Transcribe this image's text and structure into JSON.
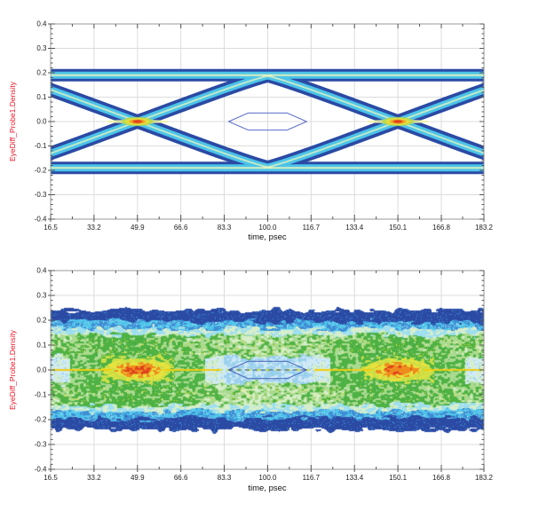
{
  "page": {
    "background": "#ffffff",
    "description": "Two stacked eye-diagram density plots"
  },
  "colors": {
    "navy": "#2b4aa4",
    "blue2": "#3e8ed6",
    "cyan": "#4cc4e9",
    "cyan2": "#74c8e8",
    "pale_cyan": "#9ddff0",
    "pale_blue": "#cfe9f7",
    "light_blue": "#9fd2ee",
    "pale_green": "#d6eecb",
    "light_green": "#a9da90",
    "green": "#4fb244",
    "dark_green": "#3da23c",
    "yellow": "#e6e23e",
    "yellow_line": "#f1cd12",
    "yellow_green": "#c8de46",
    "orange": "#ee8c1e",
    "red": "#e0431d",
    "pale_core": "#e8f4bc",
    "hot_streak": "#edf3a6",
    "mask_outline": "#5a6cc8",
    "mask_outline_bottom": "#4a62b8",
    "center_dash": "#3c55a6",
    "grid": "#dcdcdc",
    "frame": "#9a9a9a",
    "tick": "#555555",
    "tick_text": "#222222"
  },
  "chart_data": [
    {
      "type": "heatmap",
      "subtype": "eye-diagram-density",
      "title": "",
      "xlabel": "time, psec",
      "ylabel": "EyeDiff_Probe1.Density",
      "xlim": [
        16.5,
        183.2
      ],
      "ylim": [
        -0.4,
        0.4
      ],
      "x_ticks": [
        16.5,
        33.2,
        49.9,
        66.6,
        83.3,
        100.0,
        116.7,
        133.4,
        150.1,
        166.8,
        183.2
      ],
      "x_tick_labels": [
        "16.5",
        "33.2",
        "49.9",
        "66.6",
        "83.3",
        "100.0",
        "116.7",
        "133.4",
        "150.1",
        "166.8",
        "183.2"
      ],
      "y_ticks": [
        0.4,
        0.3,
        0.2,
        0.1,
        0.0,
        -0.1,
        -0.2,
        -0.3,
        -0.4
      ],
      "y_tick_labels": [
        "0.4",
        "0.3",
        "0.2",
        "0.1",
        "0.0",
        "-0.1",
        "-0.2",
        "-0.3",
        "-0.4"
      ],
      "grid": true,
      "legend": false,
      "eye": {
        "state": "open",
        "crossing_times_psec": [
          49.9,
          150.1
        ],
        "eye_center_psec": 100.0,
        "unit_interval_psec": 100.2,
        "high_level": 0.19,
        "low_level": -0.19,
        "transition_halfspan_psec": 52,
        "crossing_hotspot": "yellow-orange-red density peak at each zero crossing",
        "mask_polygon": [
          [
            85,
            0
          ],
          [
            92.5,
            0.035
          ],
          [
            107.5,
            0.035
          ],
          [
            115,
            0
          ],
          [
            107.5,
            -0.035
          ],
          [
            92.5,
            -0.035
          ]
        ]
      },
      "density_colormap_low_to_high": [
        "#2b4aa4",
        "#4cc4e9",
        "#a9da90",
        "#4fb244",
        "#e6e23e",
        "#ee8c1e",
        "#e0431d"
      ]
    },
    {
      "type": "heatmap",
      "subtype": "eye-diagram-density",
      "title": "",
      "xlabel": "time, psec",
      "ylabel": "EyeDiff_Probe1.Density",
      "xlim": [
        16.5,
        183.2
      ],
      "ylim": [
        -0.4,
        0.4
      ],
      "x_ticks": [
        16.5,
        33.2,
        49.9,
        66.6,
        83.3,
        100.0,
        116.7,
        133.4,
        150.1,
        166.8,
        183.2
      ],
      "x_tick_labels": [
        "16.5",
        "33.2",
        "49.9",
        "66.6",
        "83.3",
        "100.0",
        "116.7",
        "133.4",
        "150.1",
        "166.8",
        "183.2"
      ],
      "y_ticks": [
        0.4,
        0.3,
        0.2,
        0.1,
        0.0,
        -0.1,
        -0.2,
        -0.3,
        -0.4
      ],
      "y_tick_labels": [
        "0.4",
        "0.3",
        "0.2",
        "0.1",
        "0.0",
        "-0.1",
        "-0.2",
        "-0.3",
        "-0.4"
      ],
      "grid": true,
      "legend": false,
      "eye": {
        "state": "closed-noisy",
        "crossing_times_psec": [
          49.9,
          150.1
        ],
        "eye_center_psec": 100.0,
        "unit_interval_psec": 100.2,
        "mask_polygon": [
          [
            85,
            0
          ],
          [
            92.5,
            0.035
          ],
          [
            107.5,
            0.035
          ],
          [
            115,
            0
          ],
          [
            107.5,
            -0.035
          ],
          [
            92.5,
            -0.035
          ]
        ],
        "center_line": "thin yellow density trace at 0.0 across full width, dark dashed segment through mask"
      },
      "bands": [
        {
          "v_range": [
            0.195,
            0.245
          ],
          "color": "navy",
          "note": "wavy outer envelope"
        },
        {
          "v_range": [
            0.167,
            0.195
          ],
          "color": "cyan / medium blue"
        },
        {
          "v_range": [
            0.141,
            0.167
          ],
          "color": "pale cyan / pale green"
        },
        {
          "v_range": [
            0.052,
            0.141
          ],
          "color": "green blotches, strongest near crossings, sparse yellow speckles"
        },
        {
          "v_range": [
            0.0,
            0.052
          ],
          "color": "light blue near eye center, yellow-orange-red hotspot at crossings"
        }
      ],
      "density_colormap_low_to_high": [
        "#2b4aa4",
        "#4cc4e9",
        "#a9da90",
        "#4fb244",
        "#e6e23e",
        "#ee8c1e",
        "#e0431d"
      ]
    }
  ]
}
